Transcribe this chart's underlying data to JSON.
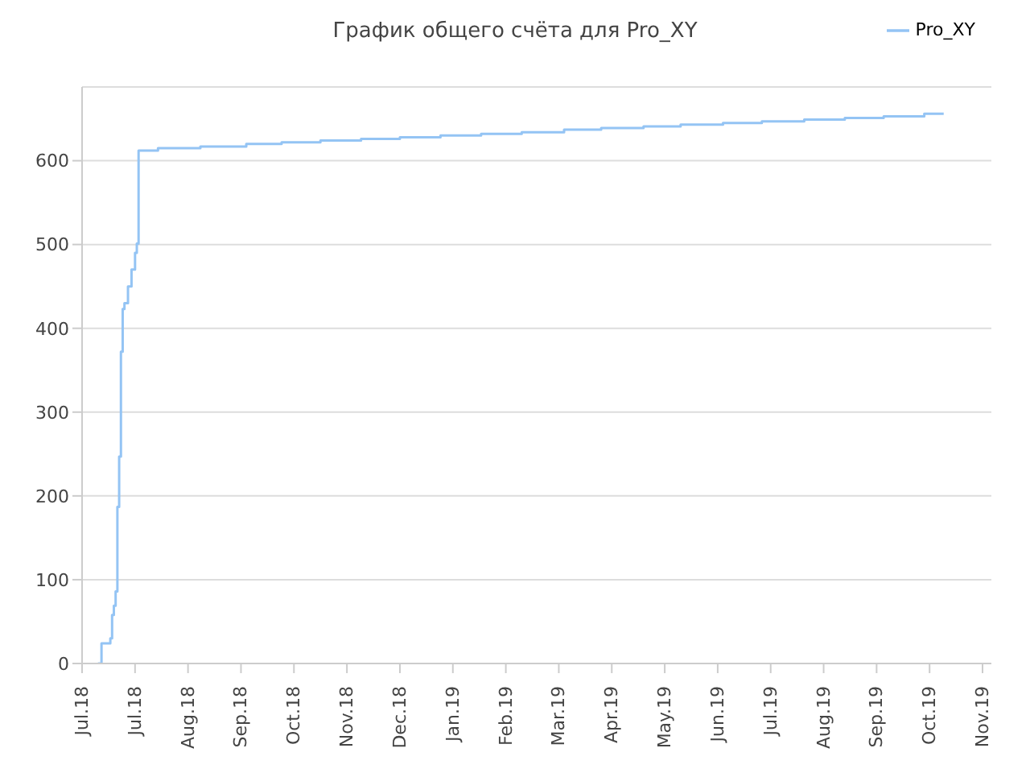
{
  "chart_data": {
    "type": "step",
    "title": "График общего счёта для Pro_XY",
    "x": [
      "2018-07-10",
      "2018-07-12",
      "2018-07-17",
      "2018-07-18",
      "2018-07-19",
      "2018-07-20",
      "2018-07-21",
      "2018-07-22",
      "2018-07-23",
      "2018-07-24",
      "2018-07-25",
      "2018-07-27",
      "2018-07-29",
      "2018-07-31",
      "2018-08-01",
      "2018-08-02",
      "2018-08-13",
      "2018-09-06",
      "2018-10-02",
      "2018-10-22",
      "2018-11-13",
      "2018-12-06",
      "2018-12-28",
      "2019-01-20",
      "2019-02-12",
      "2019-03-07",
      "2019-03-31",
      "2019-04-21",
      "2019-05-15",
      "2019-06-05",
      "2019-06-29",
      "2019-07-21",
      "2019-08-14",
      "2019-09-06",
      "2019-09-28",
      "2019-10-21",
      "2019-11-01"
    ],
    "series": [
      {
        "name": "Pro_XY",
        "color": "#94c4f4",
        "values": [
          0,
          24,
          30,
          58,
          69,
          86,
          187,
          247,
          372,
          423,
          430,
          450,
          470,
          490,
          501,
          612,
          615,
          617,
          620,
          622,
          624,
          626,
          628,
          630,
          632,
          634,
          637,
          639,
          641,
          643,
          645,
          647,
          649,
          651,
          653,
          656,
          656
        ]
      }
    ],
    "xlim": [
      "2018-07-01",
      "2019-11-28"
    ],
    "xticks": [
      {
        "value": "2018-07-01",
        "label": "Jul.18"
      },
      {
        "value": "2018-07-31",
        "label": "Jul.18"
      },
      {
        "value": "2018-08-30",
        "label": "Aug.18"
      },
      {
        "value": "2018-09-29",
        "label": "Sep.18"
      },
      {
        "value": "2018-10-29",
        "label": "Oct.18"
      },
      {
        "value": "2018-11-28",
        "label": "Nov.18"
      },
      {
        "value": "2018-12-28",
        "label": "Dec.18"
      },
      {
        "value": "2019-01-27",
        "label": "Jan.19"
      },
      {
        "value": "2019-02-26",
        "label": "Feb.19"
      },
      {
        "value": "2019-03-28",
        "label": "Mar.19"
      },
      {
        "value": "2019-04-27",
        "label": "Apr.19"
      },
      {
        "value": "2019-05-27",
        "label": "May.19"
      },
      {
        "value": "2019-06-26",
        "label": "Jun.19"
      },
      {
        "value": "2019-07-26",
        "label": "Jul.19"
      },
      {
        "value": "2019-08-25",
        "label": "Aug.19"
      },
      {
        "value": "2019-09-24",
        "label": "Sep.19"
      },
      {
        "value": "2019-10-24",
        "label": "Oct.19"
      },
      {
        "value": "2019-11-23",
        "label": "Nov.19"
      }
    ],
    "ylim": [
      0,
      688
    ],
    "yticks": [
      0,
      100,
      200,
      300,
      400,
      500,
      600
    ],
    "grid": "y",
    "legend": "top right",
    "marker": "none",
    "line_style": "solid"
  }
}
